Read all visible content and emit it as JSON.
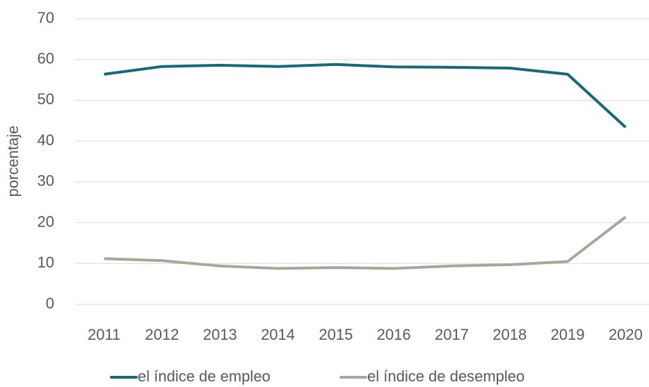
{
  "chart_data": {
    "type": "line",
    "y_label": "porcentaje",
    "categories": [
      "2011",
      "2012",
      "2013",
      "2014",
      "2015",
      "2016",
      "2017",
      "2018",
      "2019",
      "2020"
    ],
    "series": [
      {
        "name": "el índice de empleo",
        "color": "#17687a",
        "values": [
          56.4,
          58.3,
          58.6,
          58.3,
          58.8,
          58.2,
          58.1,
          57.9,
          56.4,
          43.4
        ]
      },
      {
        "name": "el índice de desempleo",
        "color": "#aba59c",
        "values": [
          11.2,
          10.7,
          9.4,
          8.8,
          9.0,
          8.8,
          9.4,
          9.7,
          10.5,
          21.4
        ]
      }
    ],
    "ylim": [
      0,
      70
    ],
    "yticks": [
      0,
      10,
      20,
      30,
      40,
      50,
      60,
      70
    ],
    "grid": true,
    "legend": "bottom"
  }
}
